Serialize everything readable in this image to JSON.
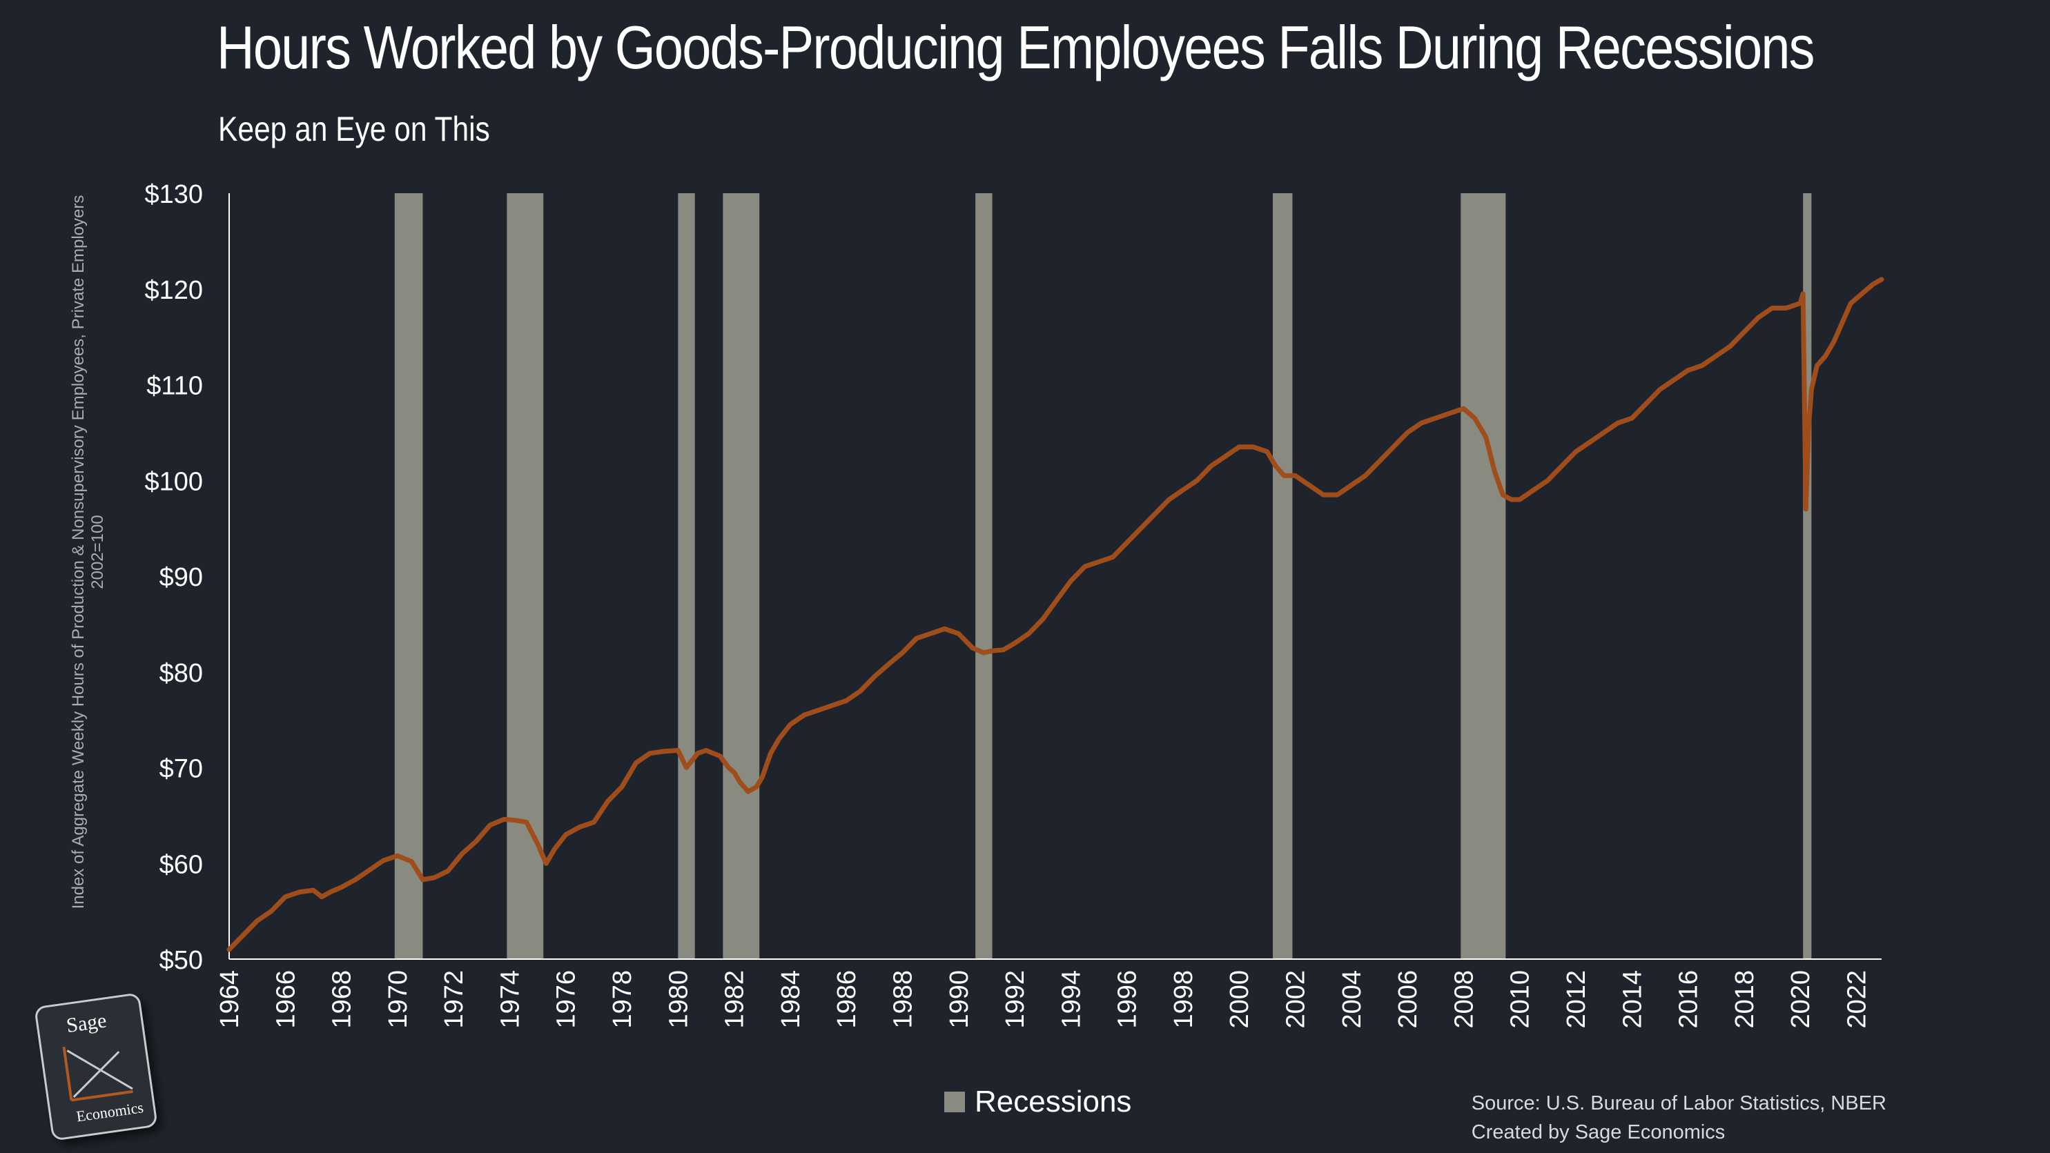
{
  "header": {
    "title": "Hours Worked by Goods-Producing Employees Falls During Recessions",
    "subtitle": "Keep an Eye on This"
  },
  "axis": {
    "ylabel_line1": "Index of Aggregate Weekly Hours of Production & Nonsupervisory Employees, Private Employers",
    "ylabel_line2": "2002=100"
  },
  "legend": {
    "label": "Recessions"
  },
  "footer": {
    "source": "Source: U.S. Bureau of Labor Statistics, NBER",
    "credit": "Created by Sage Economics"
  },
  "logo": {
    "top": "Sage",
    "bottom": "Economics"
  },
  "colors": {
    "background": "#1f232b",
    "line": "#a04d1c",
    "recession": "#8a8b80",
    "axis": "#ffffff"
  },
  "chart_data": {
    "type": "line",
    "title": "Hours Worked by Goods-Producing Employees Falls During Recessions",
    "subtitle": "Keep an Eye on This",
    "ylabel": "Index of Aggregate Weekly Hours of Production & Nonsupervisory Employees, Private Employers 2002=100",
    "ylim": [
      50,
      130
    ],
    "xlim": [
      1964,
      2022.9
    ],
    "yticks": [
      "$50",
      "$60",
      "$70",
      "$80",
      "$90",
      "$100",
      "$110",
      "$120",
      "$130"
    ],
    "xticks": [
      "1964",
      "1966",
      "1968",
      "1970",
      "1972",
      "1974",
      "1976",
      "1978",
      "1980",
      "1982",
      "1984",
      "1986",
      "1988",
      "1990",
      "1992",
      "1994",
      "1996",
      "1998",
      "2000",
      "2002",
      "2004",
      "2006",
      "2008",
      "2010",
      "2012",
      "2014",
      "2016",
      "2018",
      "2020",
      "2022"
    ],
    "recessions": [
      [
        1969.9,
        1970.9
      ],
      [
        1973.9,
        1975.2
      ],
      [
        1980.0,
        1980.6
      ],
      [
        1981.6,
        1982.9
      ],
      [
        1990.6,
        1991.2
      ],
      [
        2001.2,
        2001.9
      ],
      [
        2007.9,
        2009.5
      ],
      [
        2020.1,
        2020.4
      ]
    ],
    "legend": [
      "Recessions"
    ],
    "series": [
      {
        "x": [
          1964.0,
          1964.5,
          1965.0,
          1965.5,
          1966.0,
          1966.5,
          1967.0,
          1967.3,
          1967.6,
          1968.0,
          1968.5,
          1969.0,
          1969.5,
          1970.0,
          1970.5,
          1970.9,
          1971.3,
          1971.8,
          1972.3,
          1972.8,
          1973.3,
          1973.8,
          1974.2,
          1974.6,
          1975.0,
          1975.3,
          1975.6,
          1976.0,
          1976.5,
          1977.0,
          1977.5,
          1978.0,
          1978.5,
          1979.0,
          1979.5,
          1980.0,
          1980.3,
          1980.7,
          1981.0,
          1981.5,
          1981.8,
          1982.0,
          1982.2,
          1982.5,
          1982.8,
          1983.0,
          1983.3,
          1983.6,
          1984.0,
          1984.5,
          1985.0,
          1985.5,
          1986.0,
          1986.5,
          1987.0,
          1987.5,
          1988.0,
          1988.5,
          1989.0,
          1989.5,
          1990.0,
          1990.5,
          1990.9,
          1991.2,
          1991.6,
          1992.0,
          1992.5,
          1993.0,
          1993.5,
          1994.0,
          1994.5,
          1995.0,
          1995.5,
          1996.0,
          1996.5,
          1997.0,
          1997.5,
          1998.0,
          1998.5,
          1999.0,
          1999.5,
          2000.0,
          2000.5,
          2001.0,
          2001.3,
          2001.6,
          2002.0,
          2002.5,
          2003.0,
          2003.5,
          2004.0,
          2004.5,
          2005.0,
          2005.5,
          2006.0,
          2006.5,
          2007.0,
          2007.5,
          2008.0,
          2008.4,
          2008.8,
          2009.1,
          2009.4,
          2009.7,
          2010.0,
          2010.5,
          2011.0,
          2011.5,
          2012.0,
          2012.5,
          2013.0,
          2013.5,
          2014.0,
          2014.5,
          2015.0,
          2015.5,
          2016.0,
          2016.5,
          2017.0,
          2017.5,
          2018.0,
          2018.5,
          2019.0,
          2019.5,
          2020.0,
          2020.1,
          2020.2,
          2020.3,
          2020.4,
          2020.6,
          2020.9,
          2021.2,
          2021.5,
          2021.8,
          2022.2,
          2022.6,
          2022.9
        ],
        "values": [
          51.0,
          52.5,
          54.0,
          55.0,
          56.5,
          57.0,
          57.2,
          56.5,
          57.0,
          57.5,
          58.3,
          59.3,
          60.3,
          60.8,
          60.2,
          58.3,
          58.5,
          59.2,
          61.0,
          62.3,
          64.0,
          64.6,
          64.5,
          64.3,
          62.0,
          60.0,
          61.5,
          63.0,
          63.8,
          64.3,
          66.5,
          68.0,
          70.5,
          71.5,
          71.7,
          71.8,
          70.0,
          71.5,
          71.8,
          71.2,
          70.0,
          69.5,
          68.5,
          67.5,
          68.0,
          69.0,
          71.5,
          73.0,
          74.5,
          75.5,
          76.0,
          76.5,
          77.0,
          78.0,
          79.5,
          80.8,
          82.0,
          83.5,
          84.0,
          84.5,
          84.0,
          82.5,
          82.0,
          82.2,
          82.3,
          83.0,
          84.0,
          85.5,
          87.5,
          89.5,
          91.0,
          91.5,
          92.0,
          93.5,
          95.0,
          96.5,
          98.0,
          99.0,
          100.0,
          101.5,
          102.5,
          103.5,
          103.5,
          103.0,
          101.5,
          100.5,
          100.5,
          99.5,
          98.5,
          98.5,
          99.5,
          100.5,
          102.0,
          103.5,
          105.0,
          106.0,
          106.5,
          107.0,
          107.5,
          106.5,
          104.5,
          101.0,
          98.5,
          98.0,
          98.0,
          99.0,
          100.0,
          101.5,
          103.0,
          104.0,
          105.0,
          106.0,
          106.5,
          108.0,
          109.5,
          110.5,
          111.5,
          112.0,
          113.0,
          114.0,
          115.5,
          117.0,
          118.0,
          118.0,
          118.5,
          119.5,
          97.0,
          105.5,
          109.5,
          112.0,
          113.0,
          114.5,
          116.5,
          118.5,
          119.5,
          120.5,
          121.0
        ]
      }
    ]
  }
}
